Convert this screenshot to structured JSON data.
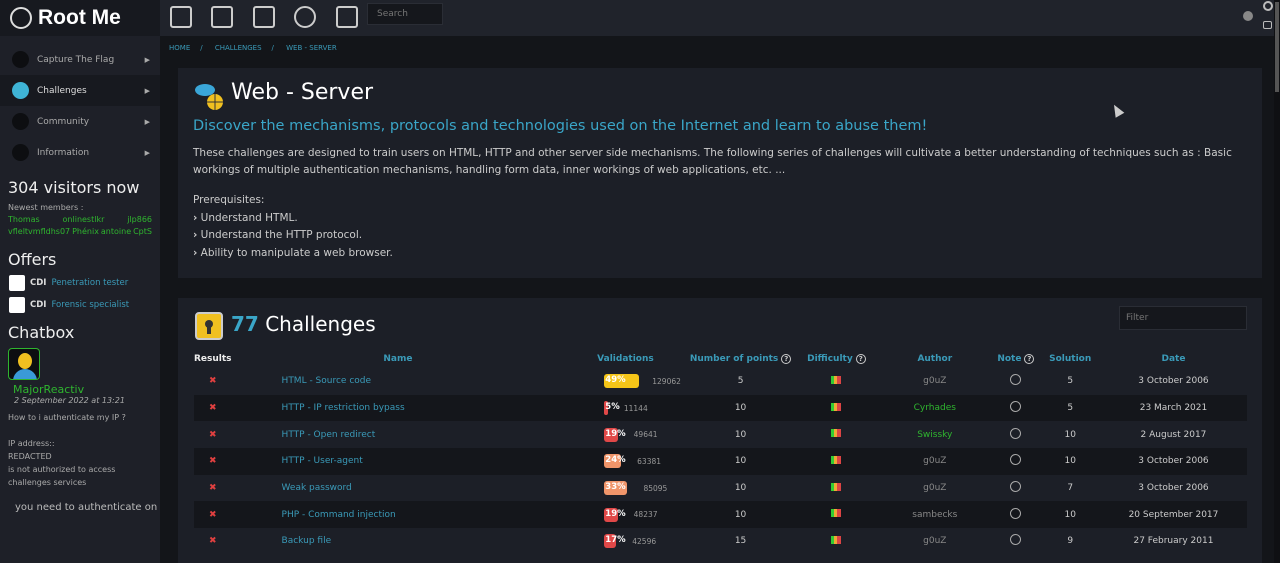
{
  "brand": "Root Me",
  "sidebar": {
    "nav": [
      {
        "label": "Capture The Flag"
      },
      {
        "label": "Challenges"
      },
      {
        "label": "Community"
      },
      {
        "label": "Information"
      }
    ],
    "visitors": "304 visitors now",
    "newest_label": "Newest members :",
    "members": [
      "Thomas",
      "onlinestlkr",
      "jlp866",
      "vfleltvmfldhs07",
      "Phénix",
      "antoine",
      "CptS"
    ],
    "offers_title": "Offers",
    "offers": [
      {
        "type": "CDI",
        "title": "Penetration tester"
      },
      {
        "type": "CDI",
        "title": "Forensic specialist"
      }
    ],
    "chat_title": "Chatbox",
    "chat": {
      "user": "MajorReactiv",
      "date": "2 September 2022 at 13:21",
      "lines": [
        "How to i authenticate my IP ?",
        "",
        "IP address::",
        "REDACTED",
        "is not authorized to access",
        "challenges services"
      ],
      "tail": "you need to authenticate on"
    }
  },
  "top": {
    "search_placeholder": "Search",
    "icons": [
      "ctf-icon",
      "challenges-icon",
      "documentation-icon",
      "tools-icon",
      "shop-icon"
    ]
  },
  "breadcrumb": [
    "HOME",
    "CHALLENGES",
    "WEB - SERVER"
  ],
  "category": {
    "title": "Web - Server",
    "subtitle": "Discover the mechanisms, protocols and technologies used on the Internet and learn to abuse them!",
    "description": "These challenges are designed to train users on HTML, HTTP and other server side mechanisms. The following series of challenges will cultivate a better understanding of techniques such as : Basic workings of multiple authentication mechanisms, handling form data, inner workings of web applications, etc. ...",
    "prereq_title": "Prerequisites:",
    "prereqs": [
      "Understand HTML.",
      "Understand the HTTP protocol.",
      "Ability to manipulate a web browser."
    ]
  },
  "challenges": {
    "count": "77",
    "label": "Challenges",
    "filter_placeholder": "Filter",
    "columns": [
      "Results",
      "Name",
      "Validations",
      "Number of points",
      "Difficulty",
      "Author",
      "Note",
      "Solution",
      "Date"
    ],
    "rows": [
      {
        "name": "HTML - Source code",
        "pct": 49,
        "pct_label": "49%",
        "color": "#f5c518",
        "count": "129062",
        "points": "5",
        "author": "g0uZ",
        "author_color": "grey",
        "solution": "5",
        "date": "3 October 2006"
      },
      {
        "name": "HTTP - IP restriction bypass",
        "pct": 5,
        "pct_label": "5%",
        "color": "#e04848",
        "count": "11144",
        "points": "10",
        "author": "Cyrhades",
        "author_color": "green",
        "solution": "5",
        "date": "23 March 2021"
      },
      {
        "name": "HTTP - Open redirect",
        "pct": 19,
        "pct_label": "19%",
        "color": "#e04848",
        "count": "49641",
        "points": "10",
        "author": "Swissky",
        "author_color": "green",
        "solution": "10",
        "date": "2 August 2017"
      },
      {
        "name": "HTTP - User-agent",
        "pct": 24,
        "pct_label": "24%",
        "color": "#f0956a",
        "count": "63381",
        "points": "10",
        "author": "g0uZ",
        "author_color": "grey",
        "solution": "10",
        "date": "3 October 2006"
      },
      {
        "name": "Weak password",
        "pct": 33,
        "pct_label": "33%",
        "color": "#f0956a",
        "count": "85095",
        "points": "10",
        "author": "g0uZ",
        "author_color": "grey",
        "solution": "7",
        "date": "3 October 2006"
      },
      {
        "name": "PHP - Command injection",
        "pct": 19,
        "pct_label": "19%",
        "color": "#e04848",
        "count": "48237",
        "points": "10",
        "author": "sambecks",
        "author_color": "grey",
        "solution": "10",
        "date": "20 September 2017"
      },
      {
        "name": "Backup file",
        "pct": 17,
        "pct_label": "17%",
        "color": "#e04848",
        "count": "42596",
        "points": "15",
        "author": "g0uZ",
        "author_color": "grey",
        "solution": "9",
        "date": "27 February 2011"
      }
    ]
  }
}
